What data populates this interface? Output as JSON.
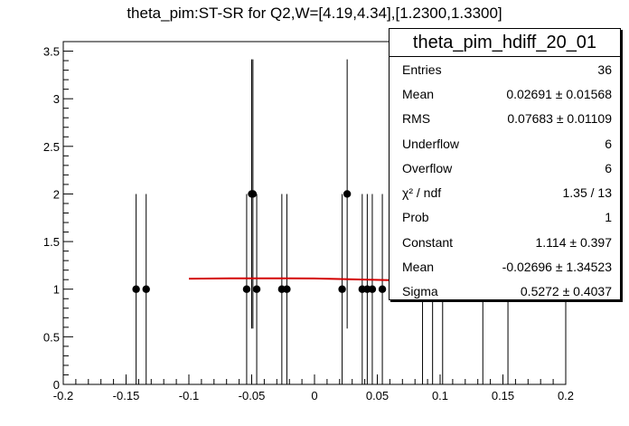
{
  "title": "theta_pim:ST-SR for Q2,W=[4.19,4.34],[1.2300,1.3300]",
  "stats": {
    "name": "theta_pim_hdiff_20_01",
    "rows": [
      {
        "label": "Entries",
        "value": "36"
      },
      {
        "label": "Mean",
        "value": "0.02691 ± 0.01568"
      },
      {
        "label": "RMS",
        "value": "0.07683 ± 0.01109"
      },
      {
        "label": "Underflow",
        "value": "6"
      },
      {
        "label": "Overflow",
        "value": "6"
      },
      {
        "label": "χ² / ndf",
        "value": "1.35 / 13"
      },
      {
        "label": "Prob",
        "value": "1"
      },
      {
        "label": "Constant",
        "value": "1.114 ± 0.397"
      },
      {
        "label": "Mean",
        "value": "-0.02696 ± 1.34523"
      },
      {
        "label": "Sigma",
        "value": "0.5272 ± 0.4037"
      }
    ]
  },
  "chart_data": {
    "type": "scatter",
    "title": "theta_pim:ST-SR for Q2,W=[4.19,4.34],[1.2300,1.3300]",
    "xlim": [
      -0.2,
      0.2
    ],
    "ylim": [
      0,
      3.6
    ],
    "xticks": [
      "-0.2",
      "-0.15",
      "-0.1",
      "-0.05",
      "0",
      "0.05",
      "0.1",
      "0.15",
      "0.2"
    ],
    "xtick_values": [
      -0.2,
      -0.15,
      -0.1,
      -0.05,
      0,
      0.05,
      0.1,
      0.15,
      0.2
    ],
    "yticks": [
      "0",
      "0.5",
      "1",
      "1.5",
      "2",
      "2.5",
      "3",
      "3.5"
    ],
    "ytick_values": [
      0,
      0.5,
      1,
      1.5,
      2,
      2.5,
      3,
      3.5
    ],
    "points": [
      {
        "x": -0.142,
        "y": 1,
        "err": 1
      },
      {
        "x": -0.134,
        "y": 1,
        "err": 1
      },
      {
        "x": -0.054,
        "y": 1,
        "err": 1
      },
      {
        "x": -0.05,
        "y": 2,
        "err": 1.414
      },
      {
        "x": -0.049,
        "y": 2,
        "err": 1.414
      },
      {
        "x": -0.046,
        "y": 1,
        "err": 1
      },
      {
        "x": -0.026,
        "y": 1,
        "err": 1
      },
      {
        "x": -0.022,
        "y": 1,
        "err": 1
      },
      {
        "x": 0.022,
        "y": 1,
        "err": 1
      },
      {
        "x": 0.026,
        "y": 2,
        "err": 1.414
      },
      {
        "x": 0.038,
        "y": 1,
        "err": 1
      },
      {
        "x": 0.042,
        "y": 1,
        "err": 1
      },
      {
        "x": 0.046,
        "y": 1,
        "err": 1
      },
      {
        "x": 0.054,
        "y": 1,
        "err": 1
      }
    ],
    "errorbars_only": [
      {
        "x": 0.086,
        "y": 1,
        "err": 1
      },
      {
        "x": 0.094,
        "y": 1,
        "err": 1
      },
      {
        "x": 0.102,
        "y": 1,
        "err": 1
      },
      {
        "x": 0.134,
        "y": 1,
        "err": 1
      },
      {
        "x": 0.154,
        "y": 1,
        "err": 1
      }
    ],
    "fit": {
      "x": [
        -0.1,
        -0.06,
        -0.02,
        0.0,
        0.02,
        0.06
      ],
      "y": [
        1.11,
        1.114,
        1.114,
        1.112,
        1.107,
        1.095
      ]
    },
    "colors": {
      "fit": "#d40000",
      "marker": "#000000"
    }
  }
}
